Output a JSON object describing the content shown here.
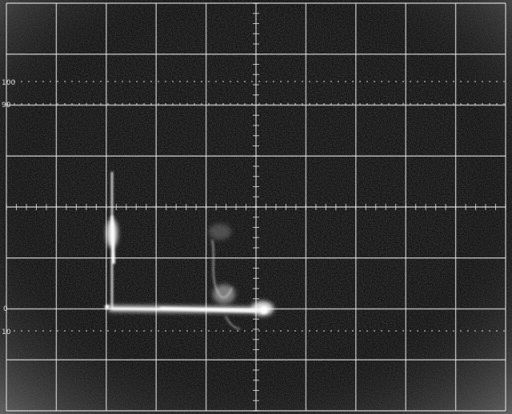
{
  "screen": {
    "background": "#0b0b0b",
    "grid_color": "#e6e6e6",
    "trace_color": "#ffffff",
    "grid": {
      "columns": 10,
      "rows": 8,
      "minor_ticks_per_division": 5
    }
  },
  "labels": {
    "percent_100": "100",
    "percent_90": "90",
    "percent_10": "10",
    "percent_0": "0"
  }
}
